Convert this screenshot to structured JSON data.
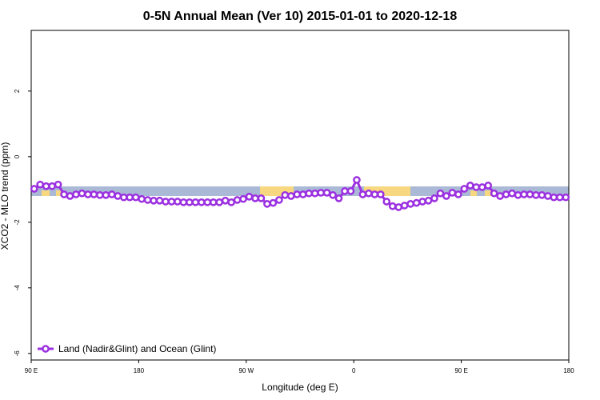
{
  "chart_data": {
    "type": "line",
    "title": "0-5N Annual Mean (Ver 10)   2015-01-01 to 2020-12-18",
    "x_label": "Longitude (deg E)",
    "y_label": "XCO2 - MLO trend (ppm)",
    "xlim": [
      90,
      540
    ],
    "ylim": [
      -6.2,
      3.85
    ],
    "xticks": [
      {
        "value": 90,
        "label": "90 E"
      },
      180,
      {
        "value": 270,
        "label": "90 W"
      },
      {
        "value": 360,
        "label": "0"
      },
      {
        "value": 450,
        "label": "90 E"
      },
      {
        "value": 540,
        "label": "180"
      }
    ],
    "yticks": [
      -6,
      -4,
      -2,
      0,
      2
    ],
    "legend": "bottom-left",
    "x": [
      92.5,
      97.5,
      102.5,
      107.5,
      112.5,
      117.5,
      122.5,
      127.5,
      132.5,
      137.5,
      142.5,
      147.5,
      152.5,
      157.5,
      162.5,
      167.5,
      172.5,
      177.5,
      182.5,
      187.5,
      192.5,
      197.5,
      202.5,
      207.5,
      212.5,
      217.5,
      222.5,
      227.5,
      232.5,
      237.5,
      242.5,
      247.5,
      252.5,
      257.5,
      262.5,
      267.5,
      272.5,
      277.5,
      282.5,
      287.5,
      292.5,
      297.5,
      302.5,
      307.5,
      312.5,
      317.5,
      322.5,
      327.5,
      332.5,
      337.5,
      342.5,
      347.5,
      352.5,
      357.5,
      362.5,
      367.5,
      372.5,
      377.5,
      382.5,
      387.5,
      392.5,
      397.5,
      402.5,
      407.5,
      412.5,
      417.5,
      422.5,
      427.5,
      432.5,
      437.5,
      442.5,
      447.5,
      452.5,
      457.5,
      462.5,
      467.5,
      472.5,
      477.5,
      482.5,
      487.5,
      492.5,
      497.5,
      502.5,
      507.5,
      512.5,
      517.5,
      522.5,
      527.5,
      532.5,
      537.5
    ],
    "series": [
      {
        "name": "Land (Nadir&Glint) and Ocean (Glint)",
        "color": "#9b30e0",
        "values": [
          -0.98,
          -0.85,
          -0.9,
          -0.9,
          -0.85,
          -1.15,
          -1.2,
          -1.15,
          -1.12,
          -1.15,
          -1.15,
          -1.17,
          -1.17,
          -1.15,
          -1.2,
          -1.24,
          -1.24,
          -1.24,
          -1.29,
          -1.32,
          -1.34,
          -1.34,
          -1.37,
          -1.37,
          -1.37,
          -1.39,
          -1.39,
          -1.39,
          -1.39,
          -1.39,
          -1.39,
          -1.39,
          -1.34,
          -1.39,
          -1.32,
          -1.29,
          -1.22,
          -1.27,
          -1.27,
          -1.44,
          -1.41,
          -1.32,
          -1.17,
          -1.2,
          -1.15,
          -1.15,
          -1.12,
          -1.12,
          -1.1,
          -1.1,
          -1.17,
          -1.27,
          -1.05,
          -1.05,
          -0.71,
          -1.15,
          -1.12,
          -1.15,
          -1.15,
          -1.37,
          -1.51,
          -1.54,
          -1.49,
          -1.44,
          -1.41,
          -1.37,
          -1.34,
          -1.27,
          -1.12,
          -1.2,
          -1.1,
          -1.15,
          -0.98,
          -0.88,
          -0.93,
          -0.93,
          -0.88,
          -1.12,
          -1.2,
          -1.15,
          -1.12,
          -1.17,
          -1.15,
          -1.15,
          -1.17,
          -1.17,
          -1.2,
          -1.24,
          -1.24,
          -1.24
        ]
      }
    ]
  }
}
